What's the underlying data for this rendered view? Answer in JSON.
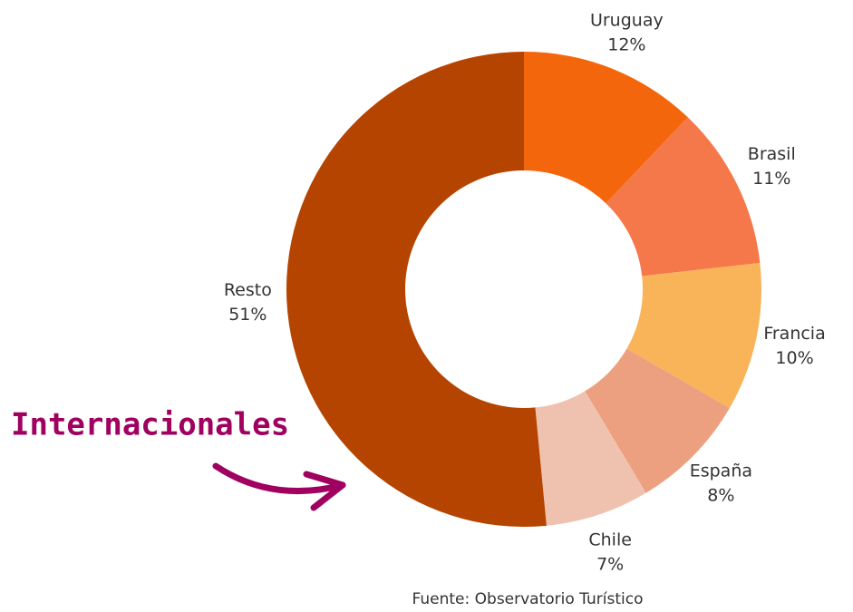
{
  "chart_data": {
    "type": "donut",
    "categories": [
      "Uruguay",
      "Brasil",
      "Francia",
      "España",
      "Chile",
      "Resto"
    ],
    "values": [
      12,
      11,
      10,
      8,
      7,
      51
    ],
    "value_labels": [
      "12%",
      "11%",
      "10%",
      "8%",
      "7%",
      "51%"
    ],
    "colors": [
      "#f4660c",
      "#f5784a",
      "#f9b45a",
      "#eda07f",
      "#efc2b0",
      "#b54400"
    ],
    "annotation": "Internacionales",
    "source": "Fuente: Observatorio Turístico"
  }
}
